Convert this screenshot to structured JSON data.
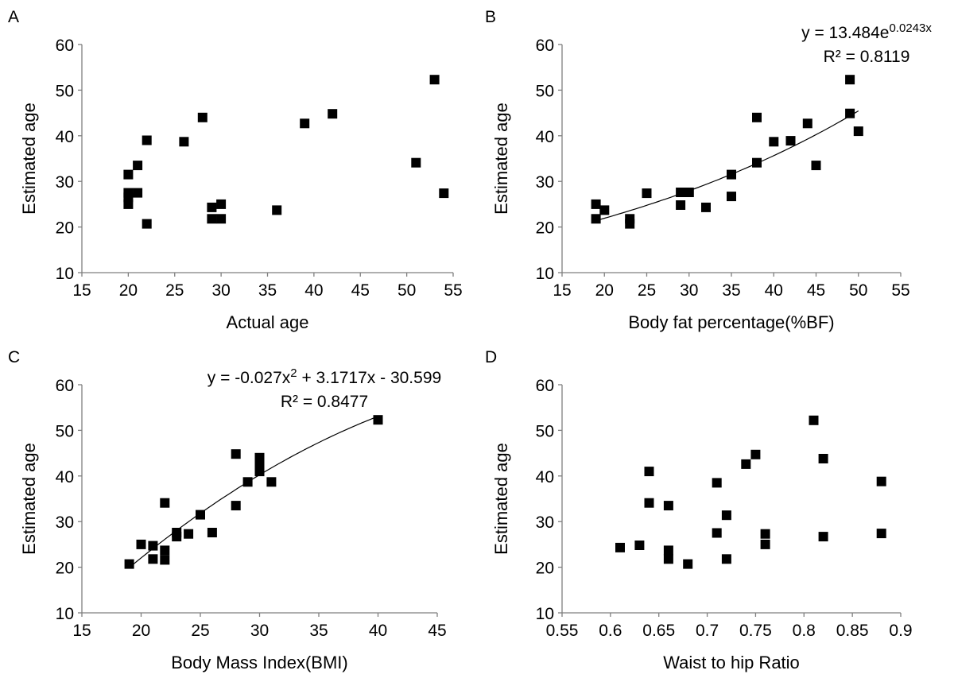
{
  "chart_data": [
    {
      "panel": "A",
      "type": "scatter",
      "xlabel": "Actual age",
      "ylabel": "Estimated age",
      "xlim": [
        15,
        55
      ],
      "ylim": [
        10,
        60
      ],
      "xticks": [
        "15",
        "20",
        "25",
        "30",
        "35",
        "40",
        "45",
        "50",
        "55"
      ],
      "yticks": [
        "10",
        "20",
        "30",
        "40",
        "50",
        "60"
      ],
      "points": [
        [
          20,
          31.5
        ],
        [
          20,
          27.5
        ],
        [
          20,
          26.5
        ],
        [
          20,
          25
        ],
        [
          21,
          33.5
        ],
        [
          21,
          27.5
        ],
        [
          22,
          39
        ],
        [
          22,
          20.7
        ],
        [
          26,
          38.7
        ],
        [
          28,
          44
        ],
        [
          29,
          24.3
        ],
        [
          29,
          21.8
        ],
        [
          30,
          25
        ],
        [
          30,
          21.8
        ],
        [
          36,
          23.7
        ],
        [
          39,
          42.7
        ],
        [
          42,
          44.8
        ],
        [
          51,
          34.1
        ],
        [
          53,
          52.3
        ],
        [
          54,
          27.4
        ]
      ],
      "trendline": null,
      "grid": false
    },
    {
      "panel": "B",
      "type": "scatter",
      "xlabel": "Body fat percentage(%BF)",
      "ylabel": "Estimated age",
      "xlim": [
        15,
        55
      ],
      "ylim": [
        10,
        60
      ],
      "xticks": [
        "15",
        "20",
        "25",
        "30",
        "35",
        "40",
        "45",
        "50",
        "55"
      ],
      "yticks": [
        "10",
        "20",
        "30",
        "40",
        "50",
        "60"
      ],
      "points": [
        [
          19,
          25
        ],
        [
          19,
          21.8
        ],
        [
          20,
          23.7
        ],
        [
          23,
          21.8
        ],
        [
          23,
          20.7
        ],
        [
          25,
          27.4
        ],
        [
          29,
          27.6
        ],
        [
          29,
          24.8
        ],
        [
          30,
          27.6
        ],
        [
          32,
          24.3
        ],
        [
          35,
          31.5
        ],
        [
          35,
          26.7
        ],
        [
          38,
          44
        ],
        [
          38,
          34.1
        ],
        [
          40,
          38.7
        ],
        [
          42,
          38.9
        ],
        [
          44,
          42.7
        ],
        [
          45,
          33.5
        ],
        [
          49,
          52.3
        ],
        [
          49,
          44.9
        ],
        [
          50,
          41
        ]
      ],
      "trendline": {
        "type": "exponential",
        "a": 13.484,
        "b": 0.0243,
        "x_range": [
          19,
          50
        ],
        "equation_main": "y = 13.484e",
        "equation_exponent": "0.0243x",
        "r2_label": "R² = 0.8119"
      },
      "grid": false
    },
    {
      "panel": "C",
      "type": "scatter",
      "xlabel": "Body Mass Index(BMI)",
      "ylabel": "Estimated age",
      "xlim": [
        15,
        45
      ],
      "ylim": [
        10,
        60
      ],
      "xticks": [
        "15",
        "20",
        "25",
        "30",
        "35",
        "40",
        "45"
      ],
      "yticks": [
        "10",
        "20",
        "30",
        "40",
        "50",
        "60"
      ],
      "points": [
        [
          19,
          20.7
        ],
        [
          20,
          25
        ],
        [
          21,
          24.7
        ],
        [
          21,
          21.8
        ],
        [
          22,
          34.1
        ],
        [
          22,
          23.7
        ],
        [
          22,
          21.6
        ],
        [
          23,
          27.6
        ],
        [
          23,
          26.7
        ],
        [
          24,
          27.3
        ],
        [
          25,
          31.5
        ],
        [
          26,
          27.6
        ],
        [
          28,
          44.8
        ],
        [
          28,
          33.5
        ],
        [
          29,
          38.7
        ],
        [
          30,
          44
        ],
        [
          30,
          42.7
        ],
        [
          30,
          41
        ],
        [
          31,
          38.7
        ],
        [
          40,
          52.3
        ]
      ],
      "trendline": {
        "type": "polynomial",
        "coefficients": [
          -0.027,
          3.1717,
          -30.599
        ],
        "x_range": [
          19,
          40
        ],
        "equation_pre": "y = -0.027x",
        "equation_sup": "2",
        "equation_post": " + 3.1717x - 30.599",
        "r2_label": "R² = 0.8477"
      },
      "grid": false
    },
    {
      "panel": "D",
      "type": "scatter",
      "xlabel": "Waist to hip Ratio",
      "ylabel": "Estimated age",
      "xlim": [
        0.55,
        0.9
      ],
      "ylim": [
        10,
        60
      ],
      "xticks": [
        "0.55",
        "0.6",
        "0.65",
        "0.7",
        "0.75",
        "0.8",
        "0.85",
        "0.9"
      ],
      "yticks": [
        "10",
        "20",
        "30",
        "40",
        "50",
        "60"
      ],
      "points": [
        [
          0.61,
          24.3
        ],
        [
          0.63,
          24.8
        ],
        [
          0.64,
          41
        ],
        [
          0.64,
          34.1
        ],
        [
          0.66,
          33.5
        ],
        [
          0.66,
          23.7
        ],
        [
          0.66,
          21.8
        ],
        [
          0.68,
          20.7
        ],
        [
          0.71,
          38.5
        ],
        [
          0.71,
          27.5
        ],
        [
          0.72,
          31.4
        ],
        [
          0.72,
          21.8
        ],
        [
          0.74,
          42.6
        ],
        [
          0.75,
          44.7
        ],
        [
          0.76,
          27.3
        ],
        [
          0.76,
          25
        ],
        [
          0.81,
          52.2
        ],
        [
          0.82,
          43.8
        ],
        [
          0.82,
          26.7
        ],
        [
          0.88,
          38.8
        ],
        [
          0.88,
          27.4
        ]
      ],
      "trendline": null,
      "grid": false
    }
  ]
}
